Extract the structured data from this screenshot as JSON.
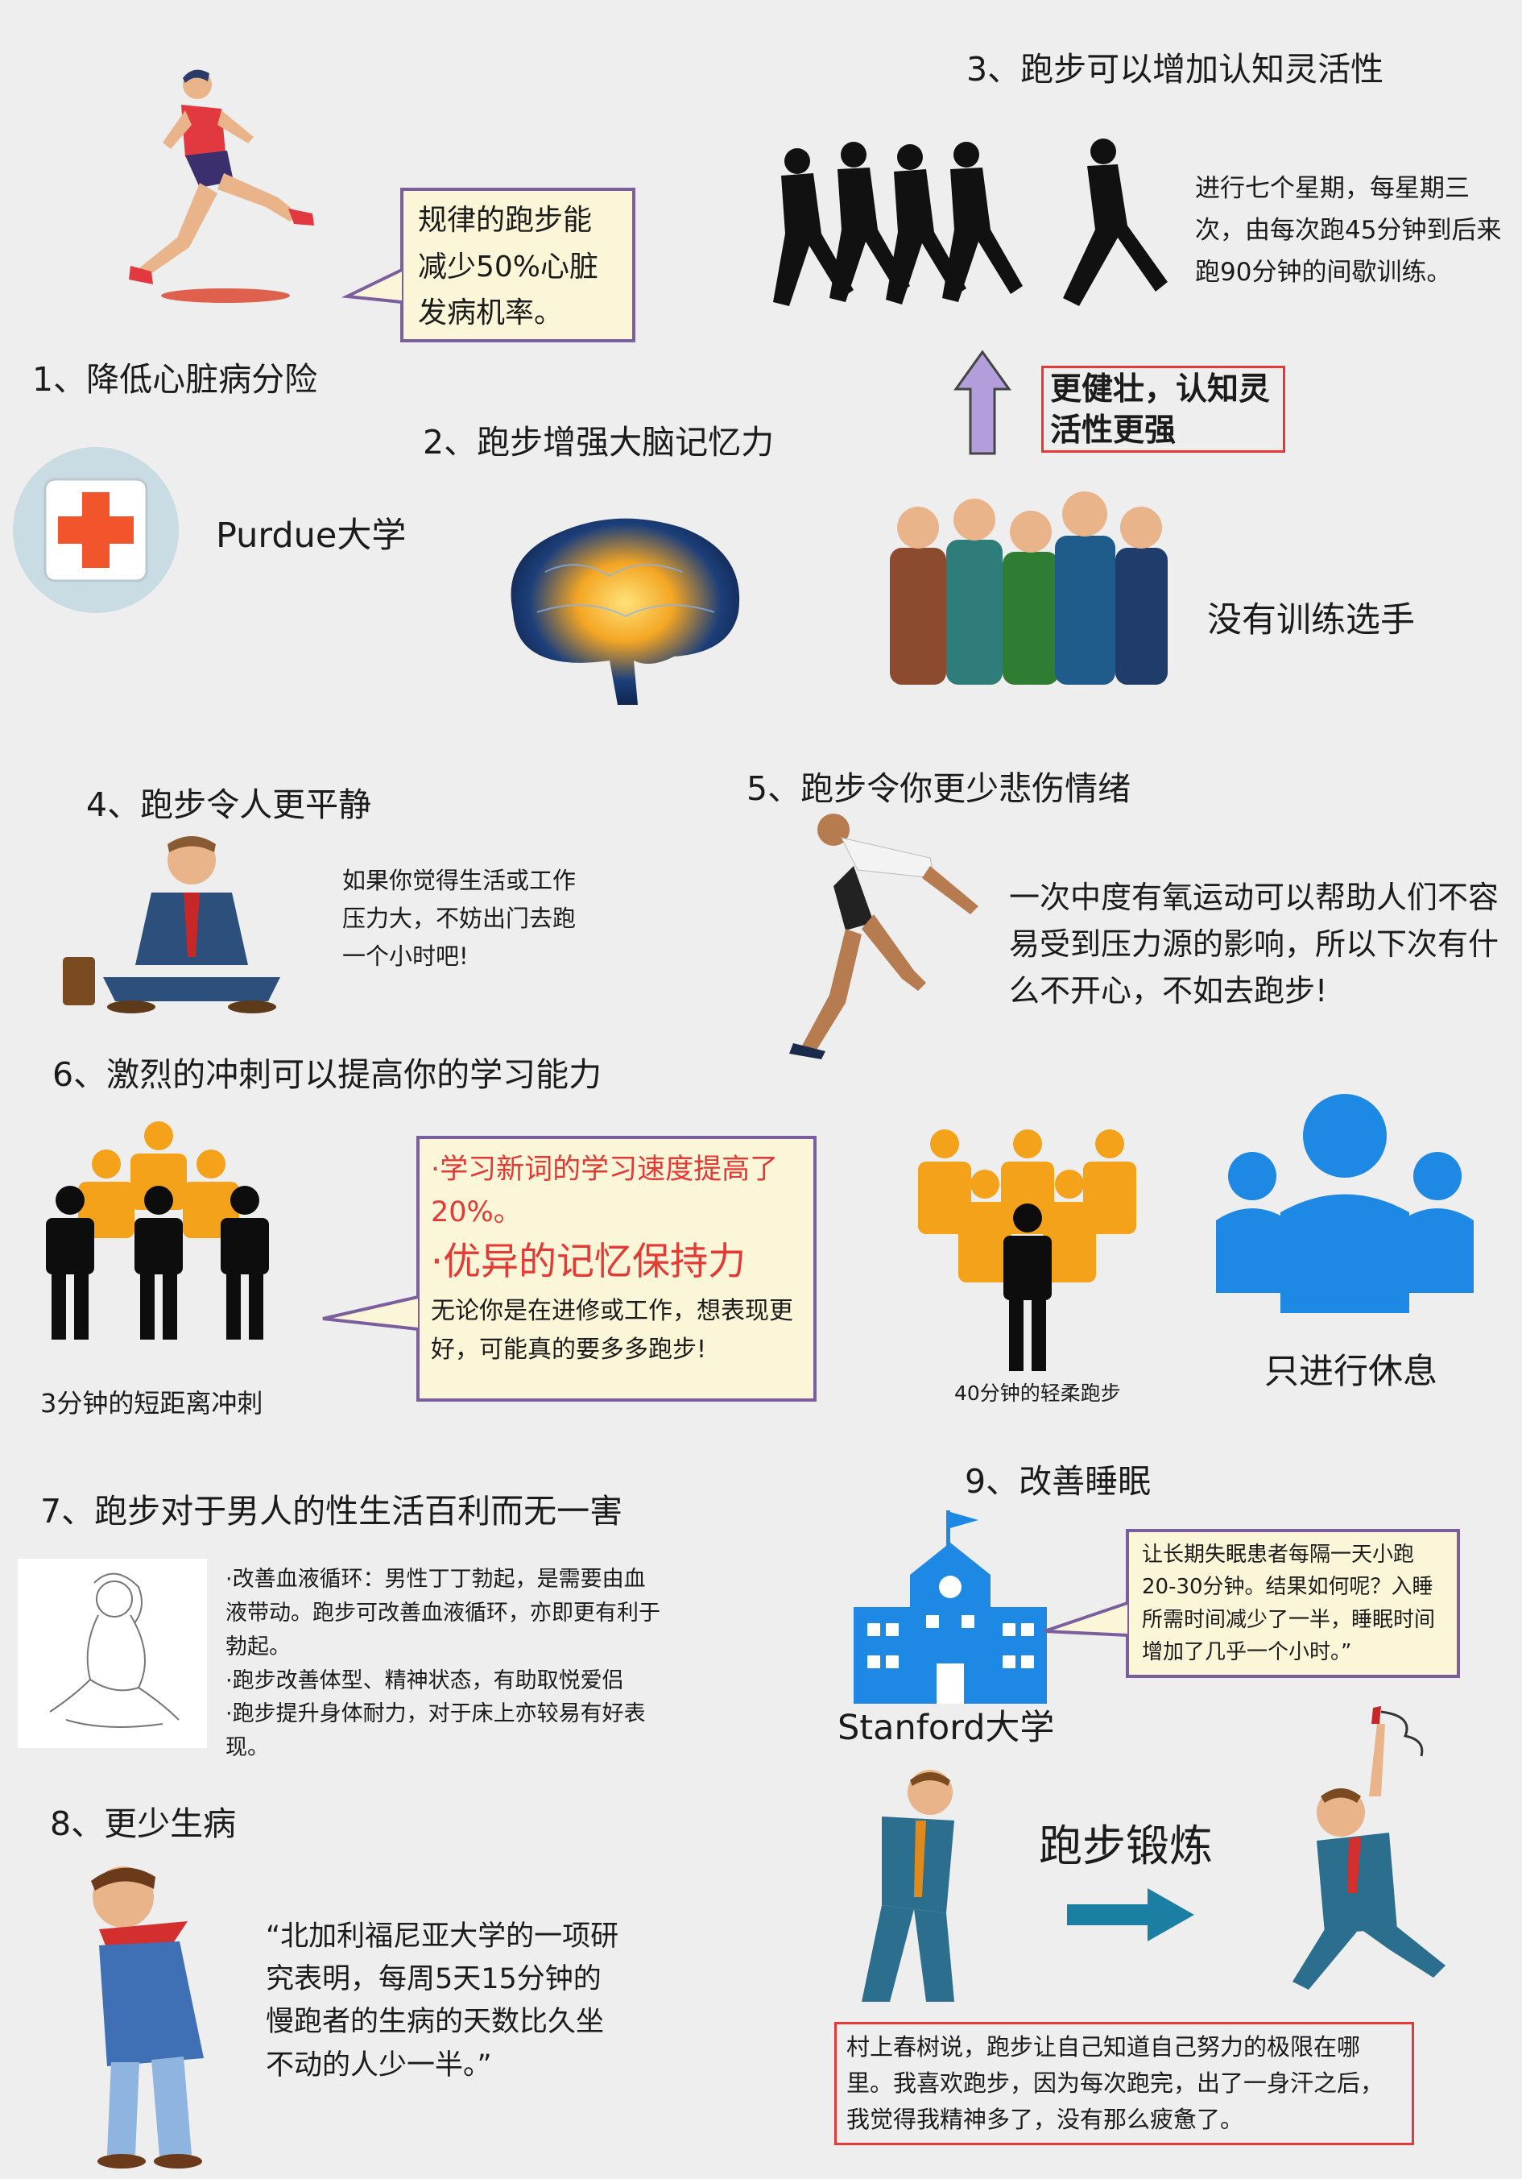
{
  "section1": {
    "title": "1、降低心脏病分险",
    "bubble": "规律的跑步能减少50%心脏发病机率。",
    "source": "Purdue大学"
  },
  "section2": {
    "title": "2、跑步增强大脑记忆力"
  },
  "section3": {
    "title": "3、跑步可以增加认知灵活性",
    "description": "进行七个星期，每星期三次，由每次跑45分钟到后来跑90分钟的间歇训练。",
    "highlight": "更健壮，认知灵活性更强",
    "group_label": "没有训练选手"
  },
  "section4": {
    "title": "4、跑步令人更平静",
    "description": "如果你觉得生活或工作压力大，不妨出门去跑一个小时吧!"
  },
  "section5": {
    "title": "5、跑步令你更少悲伤情绪",
    "description": "一次中度有氧运动可以帮助人们不容易受到压力源的影响，所以下次有什么不开心，不如去跑步!"
  },
  "section6": {
    "title": "6、激烈的冲刺可以提高你的学习能力",
    "bubble_point1": "·学习新词的学习速度提高了20%。",
    "bubble_point2": "·优异的记忆保持力",
    "bubble_body": "无论你是在进修或工作，想表现更好，可能真的要多多跑步!",
    "label_sprint": "3分钟的短距离冲刺",
    "label_jog": "40分钟的轻柔跑步",
    "label_rest": "只进行休息"
  },
  "section7": {
    "title": "7、跑步对于男人的性生活百利而无一害",
    "bullets": "·改善血液循环：男性丁丁勃起，是需要由血液带动。跑步可改善血液循环，亦即更有利于勃起。\n·跑步改善体型、精神状态，有助取悦爱侣\n·跑步提升身体耐力，对于床上亦较易有好表现。"
  },
  "section8": {
    "title": "8、更少生病",
    "quote": "“北加利福尼亚大学的一项研究表明，每周5天15分钟的慢跑者的生病的天数比久坐不动的人少一半。”"
  },
  "section9": {
    "title": "9、改善睡眠",
    "bubble": "让长期失眠患者每隔一天小跑20-30分钟。结果如何呢？入睡所需时间减少了一半，睡眠时间增加了几乎一个小时。”",
    "source": "Stanford大学",
    "arrow_label": "跑步锻炼",
    "quote": "村上春树说，跑步让自己知道自己努力的极限在哪里。我喜欢跑步，因为每次跑完，出了一身汗之后，我觉得我精神多了，没有那么疲惫了。"
  },
  "colors": {
    "bubble_border": "#7b5e9e",
    "bubble_fill": "#fbf6d8",
    "highlight_red": "#e53935",
    "people_orange": "#f5a21b",
    "people_blue": "#1e88e5",
    "arrow_purple": "#b39ddb",
    "arrow_teal": "#1a7fa3"
  }
}
